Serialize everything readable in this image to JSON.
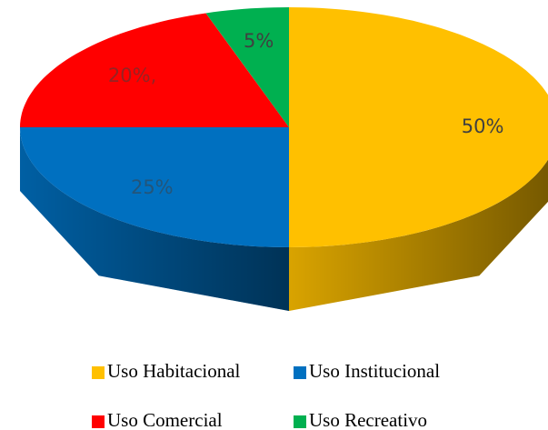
{
  "chart_data": {
    "type": "pie",
    "categories": [
      "Uso Habitacional",
      "Uso Institucional",
      "Uso Comercial",
      "Uso Recreativo"
    ],
    "values": [
      50,
      25,
      20,
      5
    ],
    "value_labels": [
      "50%",
      "25%",
      "20%,",
      "5%"
    ],
    "colors": [
      "#ffc000",
      "#0070c0",
      "#ff0000",
      "#00b050"
    ],
    "legend": "bottom"
  }
}
